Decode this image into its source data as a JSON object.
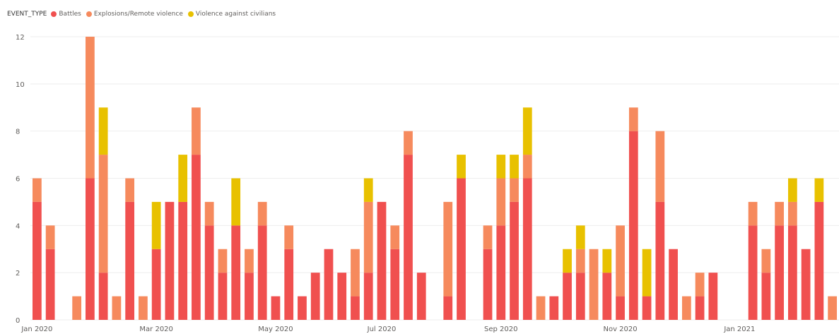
{
  "chart_data": {
    "type": "bar",
    "stacked": true,
    "legend": {
      "title": "EVENT_TYPE",
      "placement": "top-left"
    },
    "ylim": [
      0,
      12
    ],
    "yticks": [
      0,
      2,
      4,
      6,
      8,
      10,
      12
    ],
    "grid": true,
    "x_labels": [
      {
        "label": "Jan 2020",
        "at_bar": 0
      },
      {
        "label": "Mar 2020",
        "at_bar": 9
      },
      {
        "label": "May 2020",
        "at_bar": 18
      },
      {
        "label": "Jul 2020",
        "at_bar": 26
      },
      {
        "label": "Sep 2020",
        "at_bar": 35
      },
      {
        "label": "Nov 2020",
        "at_bar": 44
      },
      {
        "label": "Jan 2021",
        "at_bar": 53
      }
    ],
    "series": [
      {
        "name": "Battles",
        "color": "#f0504f",
        "values": [
          5,
          3,
          null,
          0,
          6,
          2,
          0,
          5,
          0,
          3,
          5,
          5,
          7,
          4,
          2,
          4,
          2,
          4,
          1,
          3,
          1,
          2,
          3,
          2,
          1,
          2,
          5,
          3,
          7,
          2,
          null,
          1,
          6,
          null,
          3,
          4,
          5,
          6,
          0,
          1,
          2,
          2,
          0,
          2,
          1,
          8,
          1,
          5,
          3,
          0,
          1,
          2,
          null,
          null,
          4,
          2,
          4,
          4,
          3,
          5,
          0
        ]
      },
      {
        "name": "Explosions/Remote violence",
        "color": "#f68a5d",
        "values": [
          1,
          1,
          null,
          1,
          6,
          5,
          1,
          1,
          1,
          0,
          0,
          0,
          2,
          1,
          1,
          0,
          1,
          1,
          0,
          1,
          0,
          0,
          0,
          0,
          2,
          3,
          0,
          1,
          1,
          0,
          null,
          4,
          0,
          null,
          1,
          2,
          1,
          1,
          1,
          0,
          0,
          1,
          3,
          0,
          3,
          1,
          0,
          3,
          0,
          1,
          1,
          0,
          null,
          null,
          1,
          1,
          1,
          1,
          0,
          0,
          1
        ]
      },
      {
        "name": "Violence against civilians",
        "color": "#e8c100",
        "values": [
          0,
          0,
          null,
          0,
          0,
          2,
          0,
          0,
          0,
          2,
          0,
          2,
          0,
          0,
          0,
          2,
          0,
          0,
          0,
          0,
          0,
          0,
          0,
          0,
          0,
          1,
          0,
          0,
          0,
          0,
          null,
          0,
          1,
          null,
          0,
          1,
          1,
          2,
          0,
          0,
          1,
          1,
          0,
          1,
          0,
          0,
          2,
          0,
          0,
          0,
          0,
          0,
          null,
          null,
          0,
          0,
          0,
          1,
          0,
          1,
          0
        ]
      }
    ]
  }
}
